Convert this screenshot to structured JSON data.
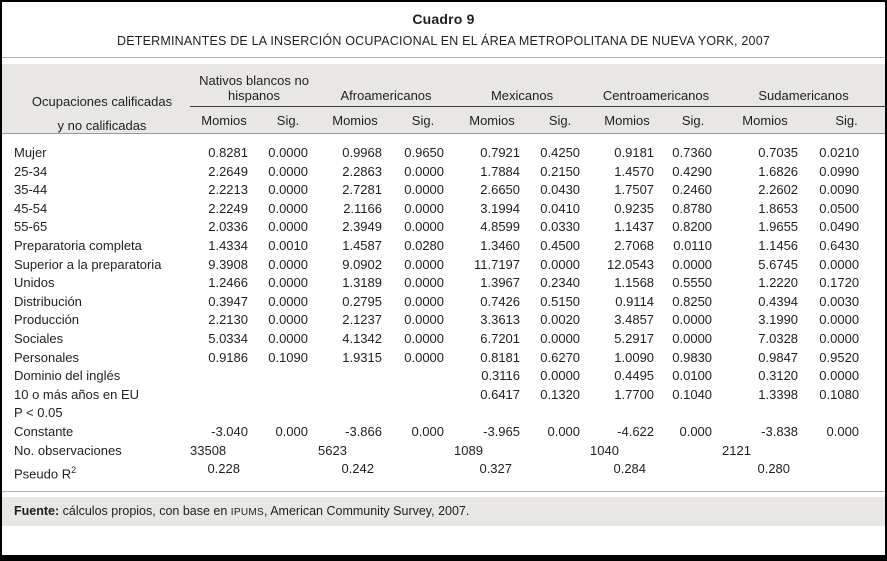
{
  "title": "Cuadro 9",
  "subtitle": "DETERMINANTES DE LA INSERCIÓN OCUPACIONAL EN EL ÁREA METROPOLITANA DE NUEVA YORK, 2007",
  "table": {
    "row_header_line1": "Ocupaciones calificadas",
    "row_header_line2": "y no calificadas",
    "groups": [
      "Nativos blancos no hispanos",
      "Afroamericanos",
      "Mexicanos",
      "Centroamericanos",
      "Sudamericanos"
    ],
    "subheaders": [
      "Momios",
      "Sig."
    ],
    "rows": [
      {
        "label": "Mujer",
        "values": [
          "0.8281",
          "0.0000",
          "0.9968",
          "0.9650",
          "0.7921",
          "0.4250",
          "0.9181",
          "0.7360",
          "0.7035",
          "0.0210"
        ]
      },
      {
        "label": "25-34",
        "values": [
          "2.2649",
          "0.0000",
          "2.2863",
          "0.0000",
          "1.7884",
          "0.2150",
          "1.4570",
          "0.4290",
          "1.6826",
          "0.0990"
        ]
      },
      {
        "label": "35-44",
        "values": [
          "2.2213",
          "0.0000",
          "2.7281",
          "0.0000",
          "2.6650",
          "0.0430",
          "1.7507",
          "0.2460",
          "2.2602",
          "0.0090"
        ]
      },
      {
        "label": "45-54",
        "values": [
          "2.2249",
          "0.0000",
          "2.1166",
          "0.0000",
          "3.1994",
          "0.0410",
          "0.9235",
          "0.8780",
          "1.8653",
          "0.0500"
        ]
      },
      {
        "label": "55-65",
        "values": [
          "2.0336",
          "0.0000",
          "2.3949",
          "0.0000",
          "4.8599",
          "0.0330",
          "1.1437",
          "0.8200",
          "1.9655",
          "0.0490"
        ]
      },
      {
        "label": "Preparatoria completa",
        "values": [
          "1.4334",
          "0.0010",
          "1.4587",
          "0.0280",
          "1.3460",
          "0.4500",
          "2.7068",
          "0.0110",
          "1.1456",
          "0.6430"
        ]
      },
      {
        "label": "Superior a la preparatoria",
        "values": [
          "9.3908",
          "0.0000",
          "9.0902",
          "0.0000",
          "11.7197",
          "0.0000",
          "12.0543",
          "0.0000",
          "5.6745",
          "0.0000"
        ]
      },
      {
        "label": "Unidos",
        "values": [
          "1.2466",
          "0.0000",
          "1.3189",
          "0.0000",
          "1.3967",
          "0.2340",
          "1.1568",
          "0.5550",
          "1.2220",
          "0.1720"
        ]
      },
      {
        "label": "Distribución",
        "values": [
          "0.3947",
          "0.0000",
          "0.2795",
          "0.0000",
          "0.7426",
          "0.5150",
          "0.9114",
          "0.8250",
          "0.4394",
          "0.0030"
        ]
      },
      {
        "label": "Producción",
        "values": [
          "2.2130",
          "0.0000",
          "2.1237",
          "0.0000",
          "3.3613",
          "0.0020",
          "3.4857",
          "0.0000",
          "3.1990",
          "0.0000"
        ]
      },
      {
        "label": "Sociales",
        "values": [
          "5.0334",
          "0.0000",
          "4.1342",
          "0.0000",
          "6.7201",
          "0.0000",
          "5.2917",
          "0.0000",
          "7.0328",
          "0.0000"
        ]
      },
      {
        "label": "Personales",
        "values": [
          "0.9186",
          "0.1090",
          "1.9315",
          "0.0000",
          "0.8181",
          "0.6270",
          "1.0090",
          "0.9830",
          "0.9847",
          "0.9520"
        ]
      },
      {
        "label": "Dominio del inglés",
        "values": [
          "",
          "",
          "",
          "",
          "0.3116",
          "0.0000",
          "0.4495",
          "0.0100",
          "0.3120",
          "0.0000"
        ]
      },
      {
        "label": "10 o más años en EU",
        "values": [
          "",
          "",
          "",
          "",
          "0.6417",
          "0.1320",
          "1.7700",
          "0.1040",
          "1.3398",
          "0.1080"
        ]
      },
      {
        "label": "P < 0.05",
        "values": [
          "",
          "",
          "",
          "",
          "",
          "",
          "",
          "",
          "",
          ""
        ]
      },
      {
        "label": "Constante",
        "values": [
          "-3.040",
          "0.000",
          "-3.866",
          "0.000",
          "-3.965",
          "0.000",
          "-4.622",
          "0.000",
          "-3.838",
          "0.000"
        ]
      }
    ],
    "observaciones": {
      "label": "No. observaciones",
      "values": [
        "33508",
        "5623",
        "1089",
        "1040",
        "2121"
      ]
    },
    "pseudo_r2": {
      "label": "Pseudo R",
      "label_sup": "2",
      "values": [
        "0.228",
        "0.242",
        "0.327",
        "0.284",
        "0.280"
      ]
    }
  },
  "footer": {
    "label": "Fuente:",
    "text_before_ipums": " cálculos propios, con base en ",
    "ipums": "IPUMS",
    "text_after_ipums": ", American Community Survey, 2007."
  },
  "colors": {
    "band_gray": "#e8e7e3",
    "frame_black": "#000000",
    "text": "#1f1f1f"
  }
}
